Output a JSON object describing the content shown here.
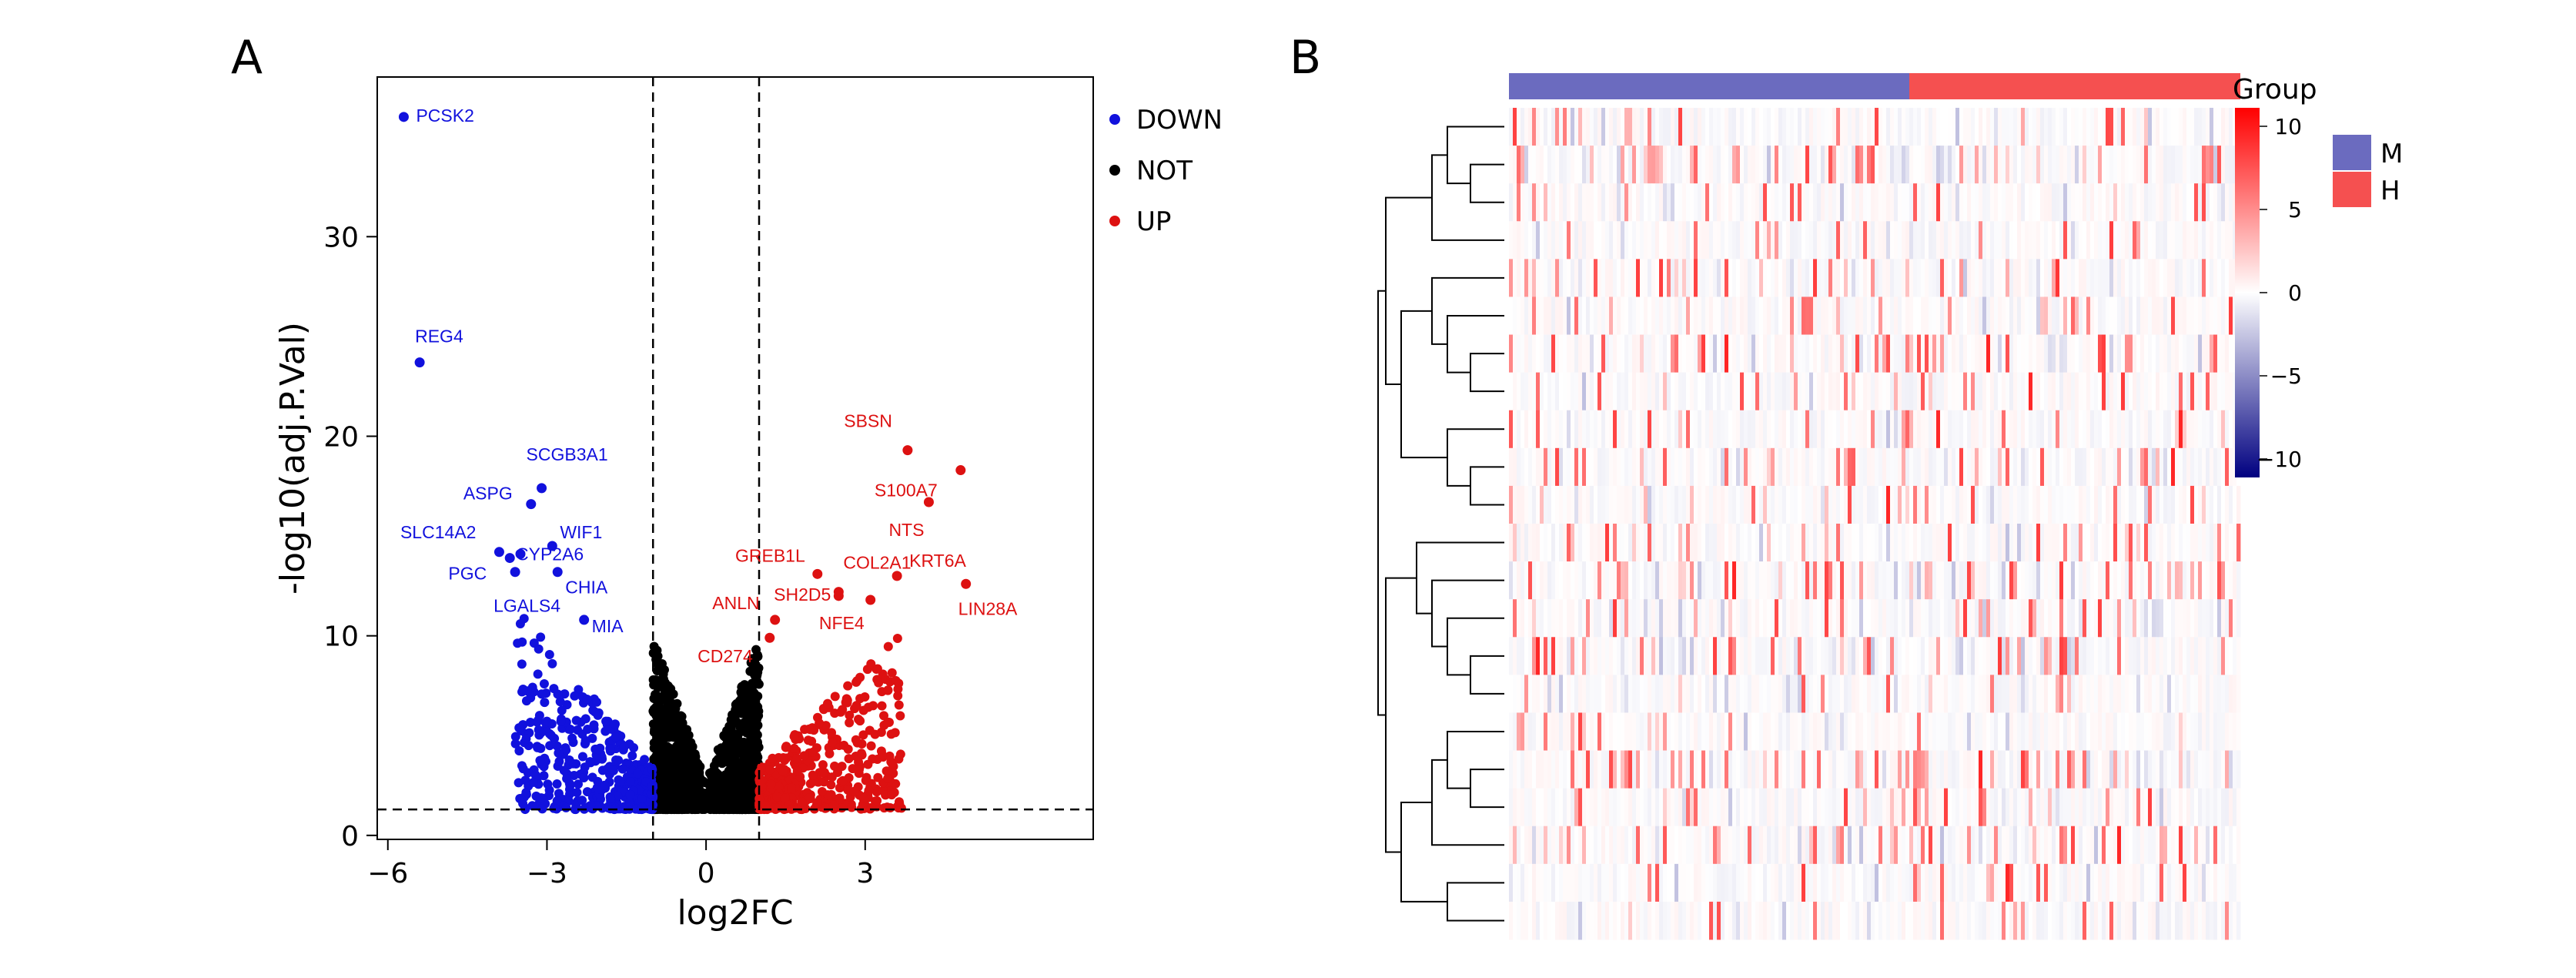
{
  "panels": {
    "a": "A",
    "b": "B"
  },
  "chart_data": [
    {
      "type": "scatter",
      "panel": "A",
      "title": "",
      "xlabel": "log2FC",
      "ylabel": "-log10(adj.P.Val)",
      "xlim": [
        -6.2,
        7.3
      ],
      "ylim": [
        -0.2,
        38
      ],
      "xticks": [
        -6,
        -3,
        0,
        3
      ],
      "xtick_labels": [
        "−6",
        "−3",
        "0",
        "3"
      ],
      "yticks": [
        0,
        10,
        20,
        30
      ],
      "ytick_labels": [
        "0",
        "10",
        "20",
        "30"
      ],
      "thresholds": {
        "log2fc": [
          -1,
          1
        ],
        "neg_log10_adj_p": 1.3
      },
      "grid": false,
      "legend": {
        "placement": "right",
        "entries": [
          {
            "name": "DOWN",
            "color": "#1111dd"
          },
          {
            "name": "NOT",
            "color": "#000000"
          },
          {
            "name": "UP",
            "color": "#dd1111"
          }
        ]
      },
      "labeled_points": [
        {
          "gene": "PCSK2",
          "x": -5.7,
          "y": 36.0,
          "group": "DOWN"
        },
        {
          "gene": "REG4",
          "x": -5.4,
          "y": 23.7,
          "group": "DOWN"
        },
        {
          "gene": "SCGB3A1",
          "x": -3.1,
          "y": 17.4,
          "group": "DOWN"
        },
        {
          "gene": "ASPG",
          "x": -3.3,
          "y": 16.6,
          "group": "DOWN"
        },
        {
          "gene": "WIF1",
          "x": -2.9,
          "y": 14.5,
          "group": "DOWN"
        },
        {
          "gene": "SLC14A2",
          "x": -3.9,
          "y": 14.2,
          "group": "DOWN"
        },
        {
          "gene": "CYP2A6",
          "x": -3.5,
          "y": 14.1,
          "group": "DOWN"
        },
        {
          "gene": "PGC",
          "x": -3.7,
          "y": 13.9,
          "group": "DOWN"
        },
        {
          "gene": "CHIA",
          "x": -2.8,
          "y": 13.2,
          "group": "DOWN"
        },
        {
          "gene": "LGALS4",
          "x": -3.6,
          "y": 13.2,
          "group": "DOWN"
        },
        {
          "gene": "MIA",
          "x": -2.3,
          "y": 10.8,
          "group": "DOWN"
        },
        {
          "gene": "SBSN",
          "x": 3.8,
          "y": 19.3,
          "group": "UP"
        },
        {
          "gene": "S100A7",
          "x": 4.8,
          "y": 18.3,
          "group": "UP"
        },
        {
          "gene": "NTS",
          "x": 4.2,
          "y": 16.7,
          "group": "UP"
        },
        {
          "gene": "GREB1L",
          "x": 2.1,
          "y": 13.1,
          "group": "UP"
        },
        {
          "gene": "COL2A1",
          "x": 2.5,
          "y": 12.2,
          "group": "UP"
        },
        {
          "gene": "KRT6A",
          "x": 3.6,
          "y": 13.0,
          "group": "UP"
        },
        {
          "gene": "SH2D5",
          "x": 2.5,
          "y": 12.0,
          "group": "UP"
        },
        {
          "gene": "NFE4",
          "x": 3.1,
          "y": 11.8,
          "group": "UP"
        },
        {
          "gene": "LIN28A",
          "x": 4.9,
          "y": 12.6,
          "group": "UP"
        },
        {
          "gene": "ANLN",
          "x": 1.3,
          "y": 10.8,
          "group": "UP"
        },
        {
          "gene": "CD274",
          "x": 1.2,
          "y": 9.9,
          "group": "UP"
        }
      ]
    },
    {
      "type": "heatmap",
      "panel": "B",
      "annotation_title": "Group",
      "groups": [
        {
          "name": "M",
          "color": "#6b6bbf"
        },
        {
          "name": "H",
          "color": "#f55050"
        }
      ],
      "colorbar": {
        "ticks": [
          10,
          5,
          0,
          -5,
          -10
        ],
        "tick_labels": [
          "10",
          "5",
          "0",
          "−5",
          "−10"
        ],
        "high_color": "#ff0000",
        "mid_color": "#ffffff",
        "low_color": "#000080"
      },
      "n_rows": 22,
      "n_columns_M": 104,
      "n_columns_H": 86,
      "dendrogram": "rows"
    }
  ]
}
